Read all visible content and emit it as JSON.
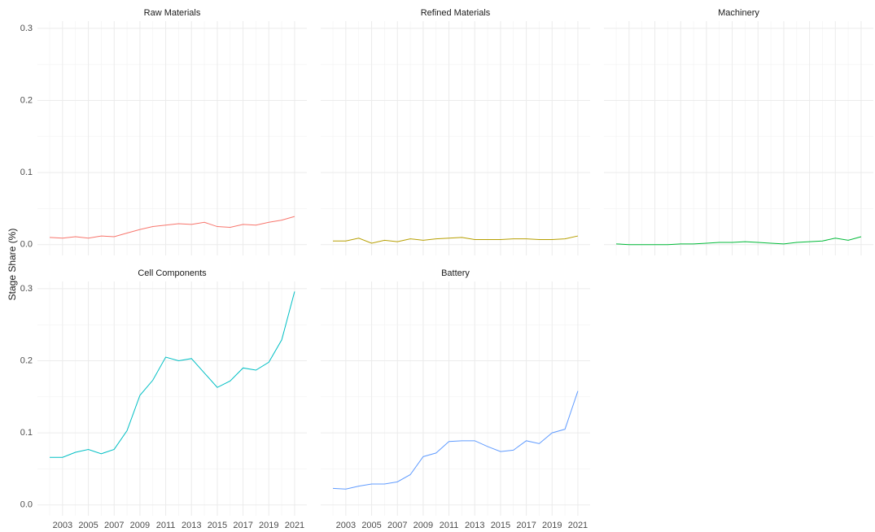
{
  "chart_data": [
    {
      "type": "line",
      "title": "Raw Materials",
      "ylabel": "Stage Share (%)",
      "color": "#F8766D",
      "x": [
        2002,
        2003,
        2004,
        2005,
        2006,
        2007,
        2008,
        2009,
        2010,
        2011,
        2012,
        2013,
        2014,
        2015,
        2016,
        2017,
        2018,
        2019,
        2020,
        2021
      ],
      "values": [
        0.01,
        0.009,
        0.011,
        0.009,
        0.012,
        0.011,
        0.016,
        0.021,
        0.025,
        0.027,
        0.029,
        0.028,
        0.031,
        0.025,
        0.024,
        0.028,
        0.027,
        0.031,
        0.034,
        0.039
      ],
      "xlim": [
        2001.05,
        2021.95
      ],
      "xticks": [
        2003,
        2005,
        2007,
        2009,
        2011,
        2013,
        2015,
        2017,
        2019,
        2021
      ],
      "ylim": [
        -0.015,
        0.31
      ],
      "yticks": [
        {
          "value": 0,
          "label": "0.0"
        },
        0.1,
        0.2,
        0.3
      ],
      "grid": true
    },
    {
      "type": "line",
      "title": "Refined Materials",
      "color": "#B79F00",
      "x": [
        2002,
        2003,
        2004,
        2005,
        2006,
        2007,
        2008,
        2009,
        2010,
        2011,
        2012,
        2013,
        2014,
        2015,
        2016,
        2017,
        2018,
        2019,
        2020,
        2021
      ],
      "values": [
        0.005,
        0.005,
        0.009,
        0.002,
        0.006,
        0.004,
        0.008,
        0.006,
        0.008,
        0.009,
        0.01,
        0.007,
        0.007,
        0.007,
        0.008,
        0.008,
        0.007,
        0.007,
        0.008,
        0.012
      ],
      "xlim": [
        2001.05,
        2021.95
      ],
      "xticks": [
        2003,
        2005,
        2007,
        2009,
        2011,
        2013,
        2015,
        2017,
        2019,
        2021
      ],
      "ylim": [
        -0.015,
        0.31
      ],
      "yticks": [
        {
          "value": 0,
          "label": "0.0"
        },
        0.1,
        0.2,
        0.3
      ],
      "grid": true
    },
    {
      "type": "line",
      "title": "Machinery",
      "color": "#00BA38",
      "x": [
        2002,
        2003,
        2004,
        2005,
        2006,
        2007,
        2008,
        2009,
        2010,
        2011,
        2012,
        2013,
        2014,
        2015,
        2016,
        2017,
        2018,
        2019,
        2020,
        2021
      ],
      "values": [
        0.001,
        0,
        0,
        0,
        0,
        0.001,
        0.001,
        0.002,
        0.003,
        0.003,
        0.004,
        0.003,
        0.002,
        0.001,
        0.003,
        0.004,
        0.005,
        0.009,
        0.006,
        0.011
      ],
      "xlim": [
        2001.05,
        2021.95
      ],
      "xticks": [
        2003,
        2005,
        2007,
        2009,
        2011,
        2013,
        2015,
        2017,
        2019,
        2021
      ],
      "ylim": [
        -0.015,
        0.31
      ],
      "yticks": [
        {
          "value": 0,
          "label": "0.0"
        },
        0.1,
        0.2,
        0.3
      ],
      "grid": true
    },
    {
      "type": "line",
      "title": "Cell Components",
      "color": "#00BFC4",
      "x": [
        2002,
        2003,
        2004,
        2005,
        2006,
        2007,
        2008,
        2009,
        2010,
        2011,
        2012,
        2013,
        2014,
        2015,
        2016,
        2017,
        2018,
        2019,
        2020,
        2021
      ],
      "values": [
        0.066,
        0.066,
        0.073,
        0.077,
        0.071,
        0.077,
        0.103,
        0.152,
        0.173,
        0.205,
        0.2,
        0.203,
        0.183,
        0.163,
        0.172,
        0.19,
        0.187,
        0.198,
        0.229,
        0.296
      ],
      "xlim": [
        2001.05,
        2021.95
      ],
      "xticks": [
        2003,
        2005,
        2007,
        2009,
        2011,
        2013,
        2015,
        2017,
        2019,
        2021
      ],
      "ylim": [
        -0.015,
        0.31
      ],
      "yticks": [
        {
          "value": 0,
          "label": "0.0"
        },
        0.1,
        0.2,
        0.3
      ],
      "grid": true
    },
    {
      "type": "line",
      "title": "Battery",
      "color": "#619CFF",
      "x": [
        2002,
        2003,
        2004,
        2005,
        2006,
        2007,
        2008,
        2009,
        2010,
        2011,
        2012,
        2013,
        2014,
        2015,
        2016,
        2017,
        2018,
        2019,
        2020,
        2021
      ],
      "values": [
        0.023,
        0.022,
        0.026,
        0.029,
        0.029,
        0.032,
        0.042,
        0.067,
        0.072,
        0.088,
        0.089,
        0.089,
        0.081,
        0.074,
        0.076,
        0.089,
        0.085,
        0.1,
        0.105,
        0.158
      ],
      "xlim": [
        2001.05,
        2021.95
      ],
      "xticks": [
        2003,
        2005,
        2007,
        2009,
        2011,
        2013,
        2015,
        2017,
        2019,
        2021
      ],
      "ylim": [
        -0.015,
        0.31
      ],
      "yticks": [
        {
          "value": 0,
          "label": "0.0"
        },
        0.1,
        0.2,
        0.3
      ],
      "grid": true
    }
  ]
}
